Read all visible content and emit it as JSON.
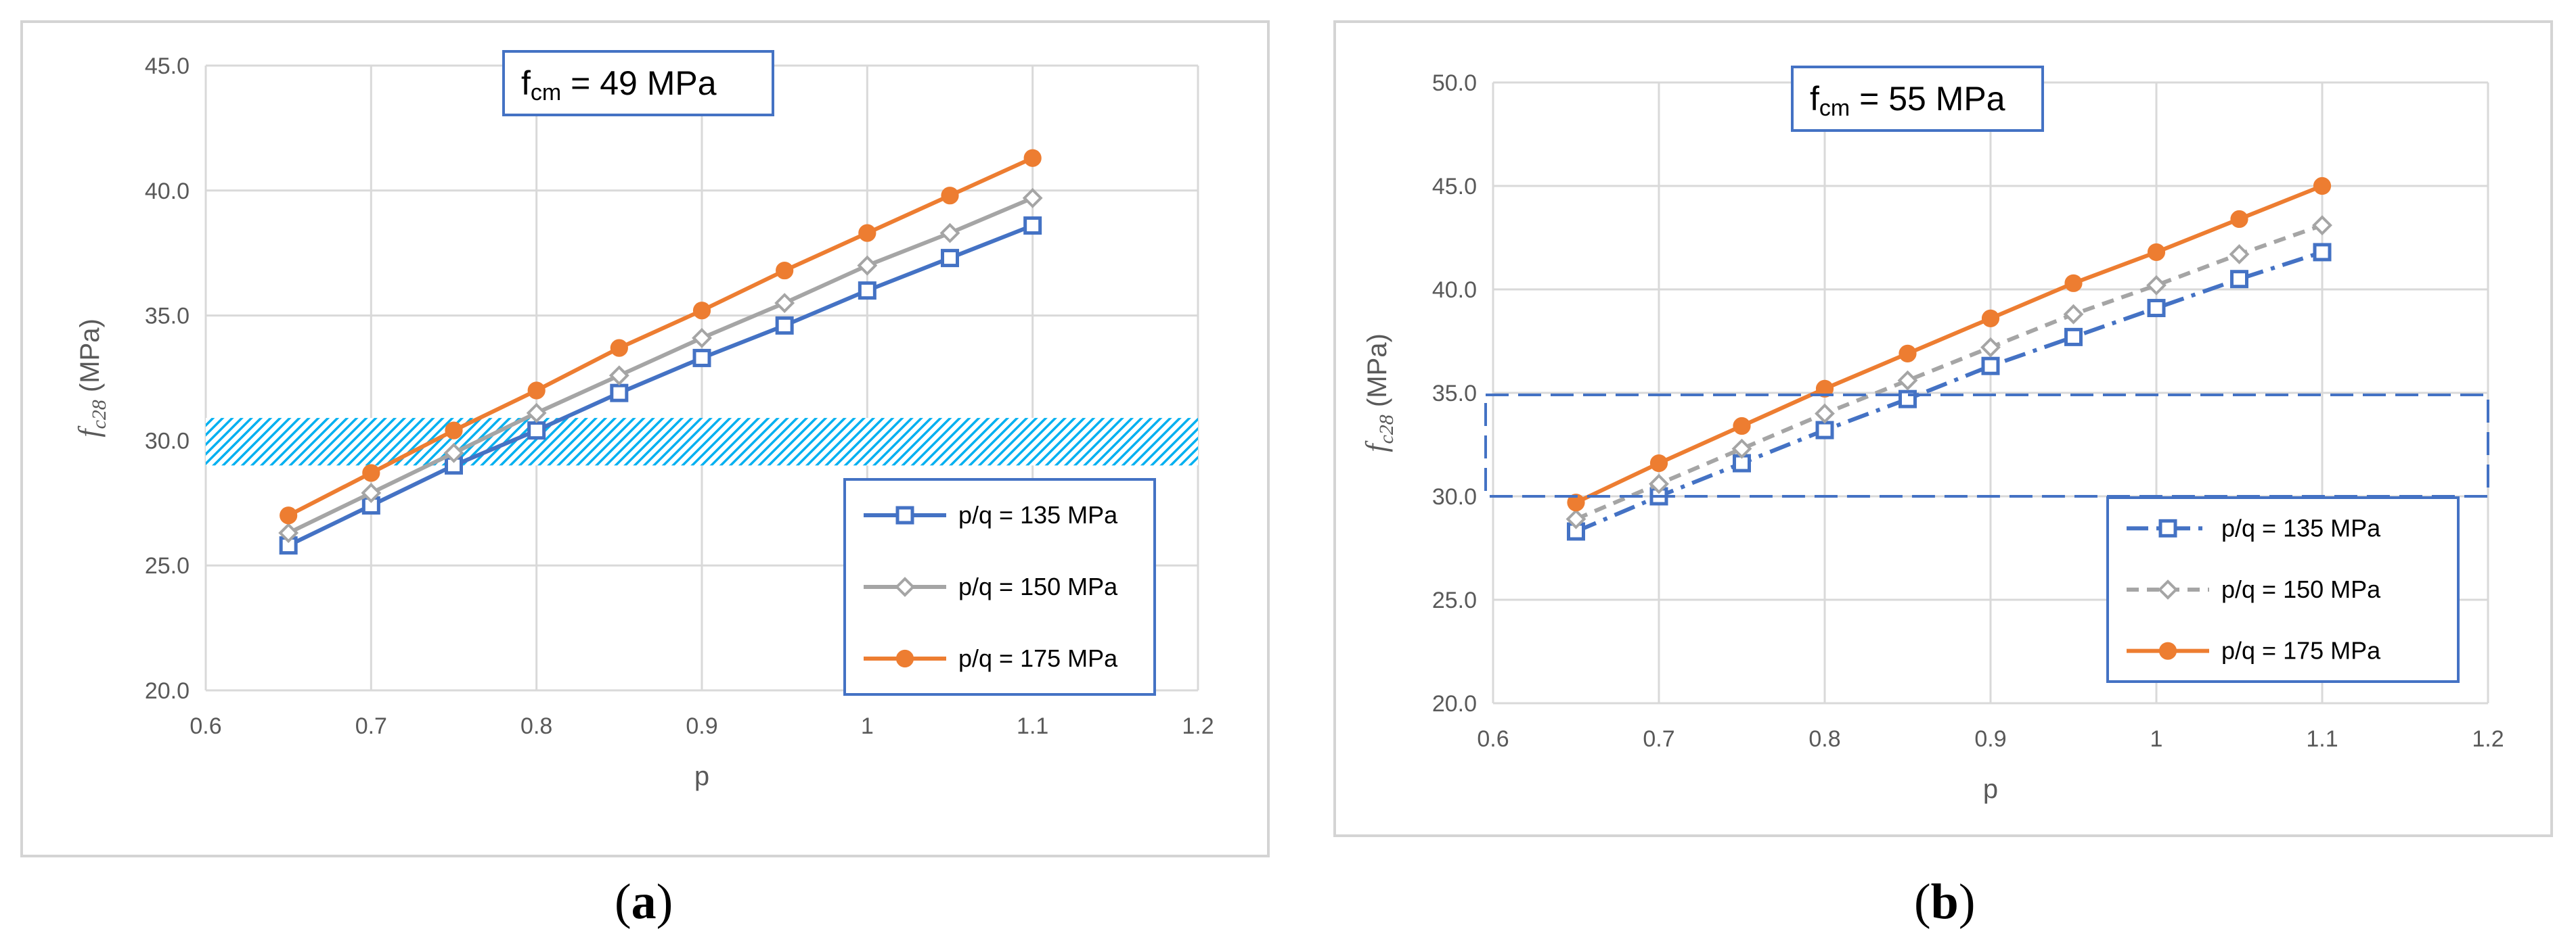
{
  "chart_data": [
    {
      "type": "line",
      "title": "fcm = 49 MPa",
      "title_main": "f",
      "title_sub": "cm",
      "title_rest": " =  49 MPa",
      "xlabel": "p",
      "ylabel_main": "f",
      "ylabel_sub": "c28",
      "ylabel_rest": " (MPa)",
      "xlim": [
        0.6,
        1.2
      ],
      "ylim": [
        20.0,
        45.0
      ],
      "x_ticks": [
        "0.6",
        "0.7",
        "0.8",
        "0.9",
        "1",
        "1.1",
        "1.2"
      ],
      "y_ticks": [
        "20.0",
        "25.0",
        "30.0",
        "35.0",
        "40.0",
        "45.0"
      ],
      "band": {
        "style": "hatched",
        "range": [
          29.0,
          30.9
        ],
        "color": "#00b0f0"
      },
      "x": [
        0.65,
        0.7,
        0.75,
        0.8,
        0.85,
        0.9,
        0.95,
        1.0,
        1.05,
        1.1
      ],
      "series": [
        {
          "name": "p/q = 135 MPa",
          "color": "#4472c4",
          "marker": "square",
          "dash": "solid",
          "values": [
            25.8,
            27.4,
            29.0,
            30.4,
            31.9,
            33.3,
            34.6,
            36.0,
            37.3,
            38.6
          ]
        },
        {
          "name": "p/q = 150 MPa",
          "color": "#a5a5a5",
          "marker": "diamond",
          "dash": "solid",
          "values": [
            26.3,
            27.9,
            29.5,
            31.1,
            32.6,
            34.1,
            35.5,
            37.0,
            38.3,
            39.7
          ]
        },
        {
          "name": "p/q = 175 MPa",
          "color": "#ed7d31",
          "marker": "circle",
          "dash": "solid",
          "values": [
            27.0,
            28.7,
            30.4,
            32.0,
            33.7,
            35.2,
            36.8,
            38.3,
            39.8,
            41.3
          ]
        }
      ],
      "legend_position": "bottom-right",
      "panel_label": "a"
    },
    {
      "type": "line",
      "title": "fcm = 55 MPa",
      "title_main": "f",
      "title_sub": "cm",
      "title_rest": " = 55 MPa",
      "xlabel": "p",
      "ylabel_main": "f",
      "ylabel_sub": "c28",
      "ylabel_rest": " (MPa)",
      "xlim": [
        0.6,
        1.2
      ],
      "ylim": [
        20.0,
        50.0
      ],
      "x_ticks": [
        "0.6",
        "0.7",
        "0.8",
        "0.9",
        "1",
        "1.1",
        "1.2"
      ],
      "y_ticks": [
        "20.0",
        "25.0",
        "30.0",
        "35.0",
        "40.0",
        "45.0",
        "50.0"
      ],
      "band": {
        "style": "dashed-box",
        "range": [
          30.0,
          34.9
        ],
        "color": "#4472c4"
      },
      "x": [
        0.65,
        0.7,
        0.75,
        0.8,
        0.85,
        0.9,
        0.95,
        1.0,
        1.05,
        1.1
      ],
      "series": [
        {
          "name": "p/q = 135 MPa",
          "color": "#4472c4",
          "marker": "square",
          "dash": "dashdot",
          "values": [
            28.3,
            30.0,
            31.6,
            33.2,
            34.7,
            36.3,
            37.7,
            39.1,
            40.5,
            41.8
          ]
        },
        {
          "name": "p/q = 150 MPa",
          "color": "#a5a5a5",
          "marker": "diamond",
          "dash": "dashed",
          "values": [
            28.9,
            30.6,
            32.3,
            34.0,
            35.6,
            37.2,
            38.8,
            40.2,
            41.7,
            43.1
          ]
        },
        {
          "name": "p/q = 175 MPa",
          "color": "#ed7d31",
          "marker": "circle",
          "dash": "solid",
          "values": [
            29.7,
            31.6,
            33.4,
            35.2,
            36.9,
            38.6,
            40.3,
            41.8,
            43.4,
            45.0
          ]
        }
      ],
      "legend_position": "bottom-right",
      "panel_label": "b"
    }
  ]
}
